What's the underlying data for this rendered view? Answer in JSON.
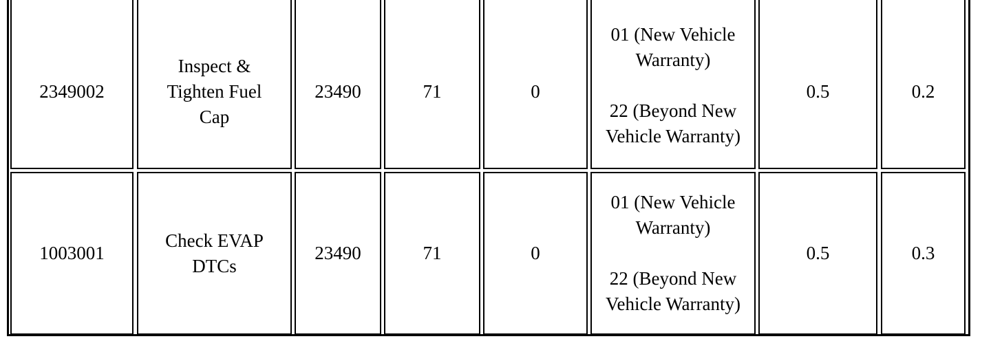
{
  "rows": [
    {
      "code": "2349002",
      "description": "Inspect & Tighten Fuel Cap",
      "col3": "23490",
      "col4": "71",
      "col5": "0",
      "warranty": [
        "01 (New Vehicle Warranty)",
        "22 (Beyond New Vehicle Warranty)"
      ],
      "col7": "0.5",
      "col8": "0.2"
    },
    {
      "code": "1003001",
      "description": "Check EVAP DTCs",
      "col3": "23490",
      "col4": "71",
      "col5": "0",
      "warranty": [
        "01 (New Vehicle Warranty)",
        "22 (Beyond New Vehicle Warranty)"
      ],
      "col7": "0.5",
      "col8": "0.3"
    }
  ]
}
